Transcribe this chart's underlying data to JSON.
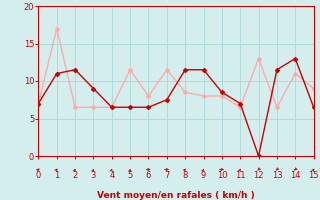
{
  "dark_red_x": [
    0,
    1,
    2,
    3,
    4,
    5,
    6,
    7,
    8,
    9,
    10,
    11,
    12,
    13,
    14,
    15
  ],
  "dark_red_y": [
    7,
    11,
    11.5,
    9,
    6.5,
    6.5,
    6.5,
    7.5,
    11.5,
    11.5,
    8.5,
    7,
    0,
    11.5,
    13,
    6.5
  ],
  "light_red_x": [
    0,
    1,
    2,
    3,
    4,
    5,
    6,
    7,
    8,
    9,
    10,
    11,
    12,
    13,
    14,
    15
  ],
  "light_red_y": [
    7,
    17,
    6.5,
    6.5,
    6.5,
    11.5,
    8,
    11.5,
    8.5,
    8,
    8,
    6.5,
    13,
    6.5,
    11,
    9
  ],
  "dark_red_color": "#cc0000",
  "light_red_color": "#ffaaaa",
  "bg_color": "#d4eeee",
  "grid_color": "#aadddd",
  "xlabel": "Vent moyen/en rafales ( km/h )",
  "xlim": [
    0,
    15
  ],
  "ylim": [
    0,
    20
  ],
  "yticks": [
    0,
    5,
    10,
    15,
    20
  ],
  "xticks": [
    0,
    1,
    2,
    3,
    4,
    5,
    6,
    7,
    8,
    9,
    10,
    11,
    12,
    13,
    14,
    15
  ],
  "wind_dirs": [
    225,
    210,
    200,
    195,
    195,
    190,
    270,
    270,
    210,
    195,
    270,
    200,
    45,
    45,
    45,
    210
  ]
}
